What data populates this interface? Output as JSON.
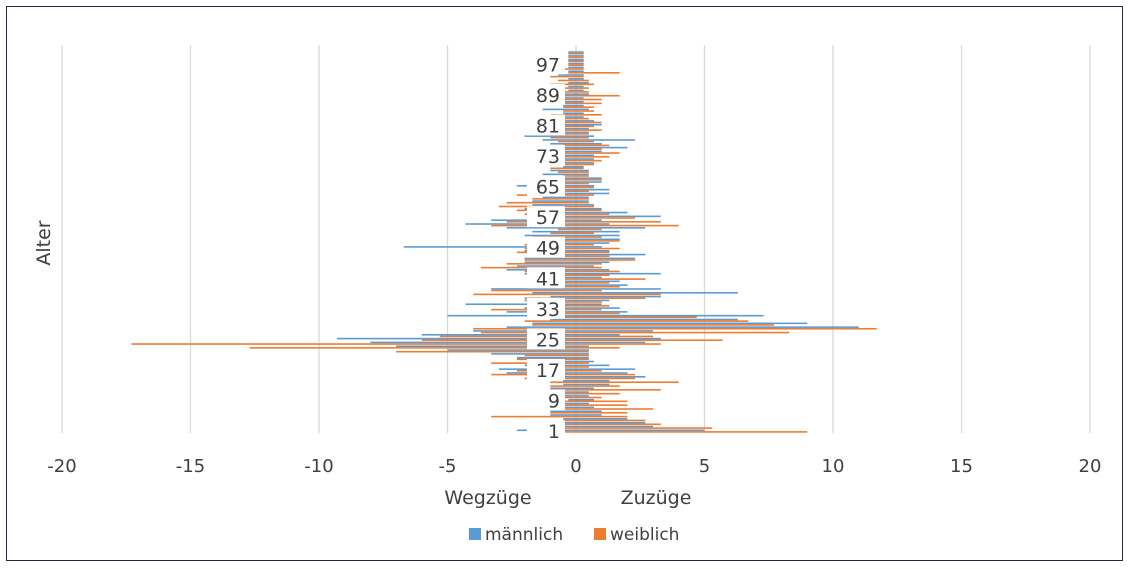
{
  "chart_data": {
    "type": "bar",
    "orientation": "horizontal",
    "title": "",
    "ylabel": "Alter",
    "xlabel_left": "Wegzüge",
    "xlabel_right": "Zuzüge",
    "xlim": [
      -20,
      20
    ],
    "xticks": [
      -20,
      -15,
      -10,
      -5,
      0,
      5,
      10,
      15,
      20
    ],
    "xtick_labels": [
      "-20",
      "-15",
      "-10",
      "-5",
      "0",
      "5",
      "10",
      "15",
      "20"
    ],
    "ytick_labels": [
      "1",
      "9",
      "17",
      "25",
      "33",
      "41",
      "49",
      "57",
      "65",
      "73",
      "81",
      "89",
      "97"
    ],
    "ytick_ages": [
      1,
      9,
      17,
      25,
      33,
      41,
      49,
      57,
      65,
      73,
      81,
      89,
      97
    ],
    "grid": true,
    "legend_position": "bottom",
    "categories": [
      1,
      2,
      3,
      4,
      5,
      6,
      7,
      8,
      9,
      10,
      11,
      12,
      13,
      14,
      15,
      16,
      17,
      18,
      19,
      20,
      21,
      22,
      23,
      24,
      25,
      26,
      27,
      28,
      29,
      30,
      31,
      32,
      33,
      34,
      35,
      36,
      37,
      38,
      39,
      40,
      41,
      42,
      43,
      44,
      45,
      46,
      47,
      48,
      49,
      50,
      51,
      52,
      53,
      54,
      55,
      56,
      57,
      58,
      59,
      60,
      61,
      62,
      63,
      64,
      65,
      66,
      67,
      68,
      69,
      70,
      71,
      72,
      73,
      74,
      75,
      76,
      77,
      78,
      79,
      80,
      81,
      82,
      83,
      84,
      85,
      86,
      87,
      88,
      89,
      90,
      91,
      92,
      93,
      94,
      95,
      96,
      97,
      98,
      99,
      100
    ],
    "series": [
      {
        "name": "männlich",
        "color": "#5b9bd5",
        "zuzuege": [
          5.0,
          3.0,
          2.7,
          2.0,
          1.0,
          1.0,
          0.7,
          0.5,
          0.7,
          0.5,
          0.5,
          0.7,
          1.3,
          1.3,
          2.7,
          2.0,
          2.3,
          1.3,
          0.7,
          0.5,
          0.5,
          0.5,
          0.5,
          2.7,
          3.3,
          1.7,
          3.0,
          11.0,
          9.0,
          6.3,
          7.3,
          2.0,
          1.7,
          1.0,
          1.3,
          3.3,
          6.3,
          3.3,
          2.0,
          1.7,
          1.0,
          3.3,
          1.3,
          0.7,
          1.3,
          2.3,
          2.7,
          1.3,
          1.0,
          1.3,
          1.7,
          1.7,
          1.7,
          2.7,
          1.3,
          1.0,
          3.3,
          2.0,
          1.0,
          0.7,
          0.5,
          0.5,
          1.3,
          1.3,
          0.7,
          1.0,
          1.0,
          0.5,
          0.5,
          0.3,
          0.7,
          0.7,
          0.7,
          1.0,
          2.0,
          1.0,
          2.3,
          0.7,
          0.5,
          0.5,
          1.0,
          0.7,
          0.3,
          0.3,
          0.5,
          0.3,
          0.3,
          0.3,
          0.5,
          0.3,
          0.3,
          0.5,
          0.3,
          0.3,
          0.3,
          0.3,
          0.3,
          0.3,
          0.3,
          0.3
        ],
        "wegzuege": [
          2.3,
          1.0,
          0.7,
          0.5,
          1.0,
          1.0,
          1.3,
          0.7,
          0.3,
          1.0,
          1.0,
          1.0,
          0.5,
          0.5,
          1.0,
          2.7,
          3.0,
          2.0,
          1.3,
          2.3,
          3.3,
          5.0,
          7.0,
          8.0,
          9.3,
          6.0,
          4.0,
          2.7,
          1.7,
          1.0,
          5.0,
          2.7,
          2.0,
          4.3,
          2.0,
          1.0,
          1.7,
          3.3,
          1.0,
          0.7,
          0.7,
          2.0,
          2.7,
          2.3,
          2.0,
          2.0,
          1.7,
          2.0,
          6.7,
          1.3,
          1.0,
          2.0,
          1.7,
          2.7,
          4.3,
          3.3,
          1.7,
          1.3,
          2.0,
          1.7,
          1.7,
          1.3,
          1.0,
          1.0,
          2.3,
          1.7,
          1.0,
          1.3,
          1.0,
          0.5,
          1.0,
          0.5,
          0.7,
          0.5,
          0.7,
          1.0,
          1.3,
          2.0,
          0.7,
          1.0,
          1.0,
          0.5,
          0.5,
          0.5,
          1.3,
          0.5,
          0.5,
          1.0,
          0.5,
          0.3,
          0.3,
          0.3,
          0.3,
          0.7,
          0.3,
          0.3,
          0.3,
          0.3,
          0.3,
          0.3
        ]
      },
      {
        "name": "weiblich",
        "color": "#ed7d31",
        "zuzuege": [
          9.0,
          5.3,
          3.3,
          2.7,
          2.0,
          2.0,
          3.0,
          2.0,
          2.0,
          1.0,
          1.7,
          3.3,
          1.7,
          4.0,
          2.3,
          2.3,
          1.0,
          0.5,
          0.5,
          0.5,
          0.5,
          0.5,
          1.7,
          3.3,
          5.7,
          3.0,
          8.3,
          11.7,
          7.7,
          6.7,
          4.7,
          1.7,
          1.0,
          1.3,
          1.0,
          2.7,
          3.3,
          1.0,
          1.7,
          1.3,
          2.7,
          1.3,
          1.7,
          1.0,
          1.0,
          2.3,
          1.3,
          1.3,
          1.7,
          0.7,
          1.7,
          1.0,
          0.7,
          1.0,
          4.0,
          3.3,
          2.3,
          1.3,
          1.0,
          0.7,
          0.5,
          0.5,
          0.7,
          0.5,
          0.7,
          0.5,
          1.0,
          0.5,
          0.5,
          0.3,
          0.7,
          1.0,
          1.3,
          1.7,
          1.0,
          1.3,
          0.7,
          0.5,
          0.5,
          1.0,
          0.7,
          1.0,
          0.5,
          1.0,
          0.7,
          0.7,
          1.0,
          1.0,
          1.7,
          0.5,
          0.5,
          0.7,
          0.5,
          0.3,
          1.7,
          0.3,
          0.3,
          0.3,
          0.3,
          0.3
        ],
        "wegzuege": [
          1.0,
          0.7,
          0.5,
          0.5,
          3.3,
          1.0,
          0.5,
          1.7,
          1.3,
          0.5,
          1.0,
          1.0,
          1.0,
          1.0,
          2.0,
          3.3,
          2.3,
          1.3,
          3.3,
          2.3,
          2.0,
          7.0,
          12.7,
          17.3,
          6.0,
          5.3,
          3.7,
          4.0,
          1.7,
          2.0,
          1.0,
          1.7,
          3.3,
          1.7,
          1.0,
          2.0,
          4.0,
          3.3,
          1.3,
          1.0,
          0.7,
          1.7,
          2.0,
          3.7,
          2.7,
          2.0,
          1.0,
          2.3,
          2.0,
          2.0,
          1.3,
          1.7,
          1.0,
          0.7,
          3.3,
          2.7,
          1.3,
          2.0,
          2.3,
          3.0,
          2.7,
          1.7,
          2.3,
          1.3,
          1.0,
          0.7,
          1.3,
          0.5,
          0.7,
          1.0,
          1.0,
          0.5,
          0.7,
          1.0,
          1.3,
          0.5,
          0.7,
          1.0,
          0.5,
          0.5,
          0.5,
          0.7,
          0.5,
          1.0,
          0.5,
          0.5,
          0.7,
          1.0,
          0.5,
          0.5,
          0.5,
          1.0,
          0.7,
          1.0,
          0.3,
          0.7,
          0.3,
          0.3,
          0.3,
          0.3
        ]
      }
    ]
  }
}
